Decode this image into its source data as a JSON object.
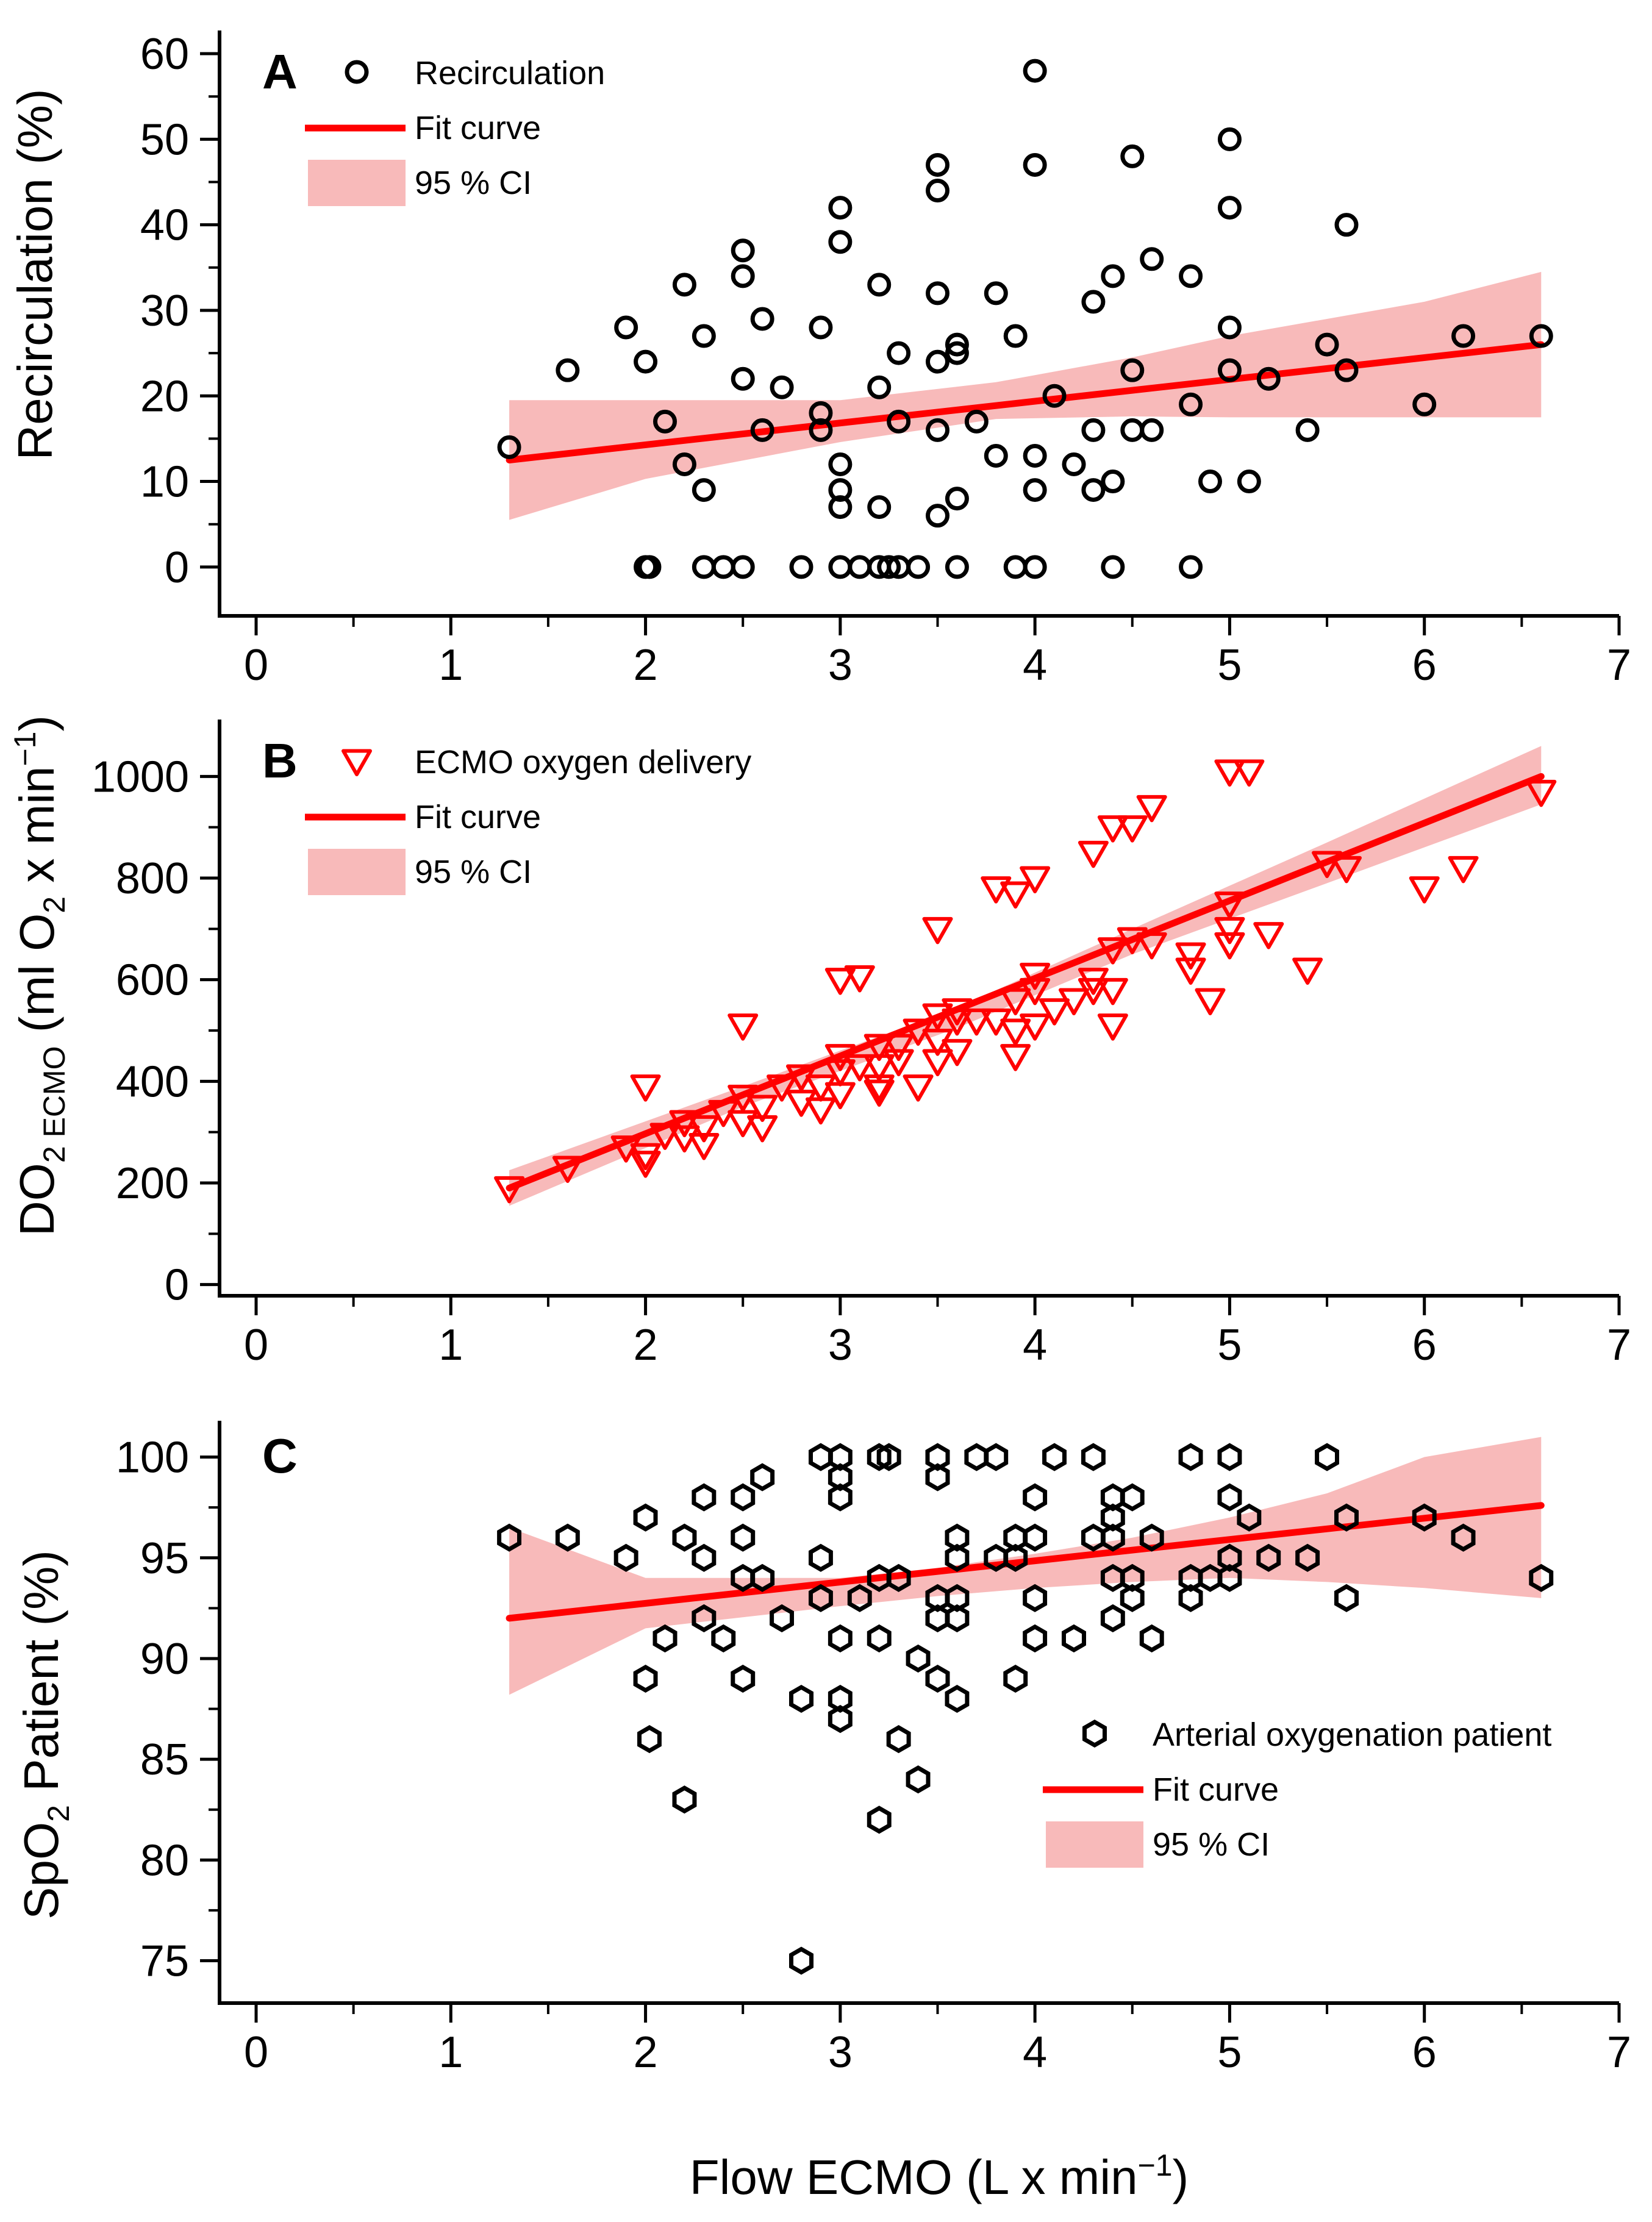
{
  "chart_data": [
    {
      "type": "scatter",
      "panel": "A",
      "ylabel": "Recirculation (%)",
      "ylabel_parts": {
        "main": "Recirculation (%)"
      },
      "xlim": [
        0,
        7
      ],
      "ylim": [
        -5,
        62
      ],
      "xticks": [
        0,
        1,
        2,
        3,
        4,
        5,
        6,
        7
      ],
      "yticks": [
        0,
        10,
        20,
        30,
        40,
        50,
        60
      ],
      "legend": {
        "position": "top-left",
        "points": "Recirculation",
        "fit": "Fit curve",
        "ci": "95 % CI"
      },
      "marker": "circle",
      "colors": {
        "points": "#000000",
        "fit": "#ff0000",
        "ci": "#f5a3a3"
      },
      "fit": {
        "x": [
          1.3,
          6.6
        ],
        "y": [
          12.5,
          26.0
        ]
      },
      "ci_band": {
        "x": [
          1.3,
          2,
          3,
          3.8,
          4.5,
          5,
          6,
          6.6
        ],
        "lower": [
          5.5,
          10.3,
          14.6,
          17.3,
          17.6,
          17.5,
          17.5,
          17.5
        ],
        "upper": [
          19.5,
          19.5,
          19.5,
          21.6,
          24.5,
          27.0,
          31.0,
          34.5
        ]
      },
      "points": [
        [
          1.3,
          14
        ],
        [
          1.6,
          23
        ],
        [
          1.9,
          28
        ],
        [
          2,
          24
        ],
        [
          2,
          0
        ],
        [
          2.02,
          0
        ],
        [
          2.1,
          17
        ],
        [
          2.2,
          33
        ],
        [
          2.2,
          12
        ],
        [
          2.3,
          27
        ],
        [
          2.3,
          9
        ],
        [
          2.3,
          0
        ],
        [
          2.4,
          0
        ],
        [
          2.5,
          37
        ],
        [
          2.5,
          34
        ],
        [
          2.5,
          22
        ],
        [
          2.5,
          0
        ],
        [
          2.6,
          29
        ],
        [
          2.6,
          16
        ],
        [
          2.7,
          21
        ],
        [
          2.8,
          0
        ],
        [
          2.9,
          28
        ],
        [
          2.9,
          18
        ],
        [
          2.9,
          16
        ],
        [
          3,
          42
        ],
        [
          3,
          38
        ],
        [
          3,
          12
        ],
        [
          3,
          9
        ],
        [
          3,
          7
        ],
        [
          3,
          0
        ],
        [
          3.1,
          0
        ],
        [
          3.2,
          33
        ],
        [
          3.2,
          21
        ],
        [
          3.2,
          7
        ],
        [
          3.2,
          0
        ],
        [
          3.25,
          0
        ],
        [
          3.3,
          25
        ],
        [
          3.3,
          17
        ],
        [
          3.3,
          0
        ],
        [
          3.4,
          0
        ],
        [
          3.5,
          47
        ],
        [
          3.5,
          44
        ],
        [
          3.5,
          32
        ],
        [
          3.5,
          24
        ],
        [
          3.5,
          16
        ],
        [
          3.5,
          6
        ],
        [
          3.6,
          26
        ],
        [
          3.6,
          25
        ],
        [
          3.6,
          8
        ],
        [
          3.6,
          0
        ],
        [
          3.7,
          17
        ],
        [
          3.8,
          32
        ],
        [
          3.8,
          13
        ],
        [
          3.9,
          27
        ],
        [
          3.9,
          0
        ],
        [
          4,
          58
        ],
        [
          4,
          47
        ],
        [
          4,
          13
        ],
        [
          4,
          9
        ],
        [
          4,
          0
        ],
        [
          4.1,
          20
        ],
        [
          4.2,
          12
        ],
        [
          4.3,
          31
        ],
        [
          4.3,
          16
        ],
        [
          4.3,
          9
        ],
        [
          4.4,
          34
        ],
        [
          4.4,
          10
        ],
        [
          4.4,
          0
        ],
        [
          4.5,
          48
        ],
        [
          4.5,
          23
        ],
        [
          4.5,
          16
        ],
        [
          4.6,
          36
        ],
        [
          4.6,
          16
        ],
        [
          4.8,
          34
        ],
        [
          4.8,
          19
        ],
        [
          4.8,
          0
        ],
        [
          4.9,
          10
        ],
        [
          5,
          50
        ],
        [
          5,
          42
        ],
        [
          5,
          28
        ],
        [
          5,
          23
        ],
        [
          5.1,
          10
        ],
        [
          5.2,
          22
        ],
        [
          5.4,
          16
        ],
        [
          5.5,
          26
        ],
        [
          5.6,
          40
        ],
        [
          5.6,
          23
        ],
        [
          6,
          19
        ],
        [
          6.2,
          27
        ],
        [
          6.6,
          27
        ]
      ]
    },
    {
      "type": "scatter",
      "panel": "B",
      "ylabel_parts": {
        "main": "DO",
        "sub1": "2 ECMO",
        "rest": " (ml O",
        "sub2": "2",
        "tail": " x min",
        "sup": "−1",
        "close": ")"
      },
      "xlim": [
        0,
        7
      ],
      "ylim": [
        -10,
        1100
      ],
      "xticks": [
        0,
        1,
        2,
        3,
        4,
        5,
        6,
        7
      ],
      "yticks": [
        0,
        200,
        400,
        600,
        800,
        1000
      ],
      "legend": {
        "position": "top-left",
        "points": "ECMO oxygen delivery",
        "fit": "Fit curve",
        "ci": "95 % CI"
      },
      "marker": "triangle-down",
      "colors": {
        "points": "#ff0000",
        "fit": "#ff0000",
        "ci": "#f5a3a3"
      },
      "fit": {
        "x": [
          1.3,
          6.6
        ],
        "y": [
          190,
          1000
        ]
      },
      "ci_band": {
        "x": [
          1.3,
          2.5,
          3.6,
          4.5,
          5.5,
          6.6
        ],
        "lower": [
          155,
          350,
          505,
          650,
          790,
          945
        ],
        "upper": [
          225,
          390,
          545,
          700,
          870,
          1060
        ]
      },
      "points": [
        [
          1.3,
          190
        ],
        [
          1.6,
          230
        ],
        [
          1.9,
          270
        ],
        [
          2,
          390
        ],
        [
          2,
          255
        ],
        [
          2,
          240
        ],
        [
          2.1,
          295
        ],
        [
          2.2,
          320
        ],
        [
          2.2,
          290
        ],
        [
          2.3,
          310
        ],
        [
          2.3,
          275
        ],
        [
          2.4,
          340
        ],
        [
          2.5,
          510
        ],
        [
          2.5,
          370
        ],
        [
          2.5,
          320
        ],
        [
          2.6,
          350
        ],
        [
          2.6,
          310
        ],
        [
          2.7,
          390
        ],
        [
          2.8,
          410
        ],
        [
          2.8,
          360
        ],
        [
          2.9,
          390
        ],
        [
          2.9,
          345
        ],
        [
          3,
          600
        ],
        [
          3,
          450
        ],
        [
          3,
          420
        ],
        [
          3,
          375
        ],
        [
          3.1,
          605
        ],
        [
          3.1,
          430
        ],
        [
          3.2,
          470
        ],
        [
          3.2,
          430
        ],
        [
          3.2,
          390
        ],
        [
          3.2,
          380
        ],
        [
          3.3,
          470
        ],
        [
          3.3,
          440
        ],
        [
          3.4,
          500
        ],
        [
          3.4,
          390
        ],
        [
          3.5,
          700
        ],
        [
          3.5,
          530
        ],
        [
          3.5,
          480
        ],
        [
          3.5,
          440
        ],
        [
          3.6,
          540
        ],
        [
          3.6,
          520
        ],
        [
          3.6,
          460
        ],
        [
          3.7,
          520
        ],
        [
          3.8,
          780
        ],
        [
          3.8,
          520
        ],
        [
          3.9,
          770
        ],
        [
          3.9,
          560
        ],
        [
          3.9,
          500
        ],
        [
          3.9,
          450
        ],
        [
          4,
          800
        ],
        [
          4,
          610
        ],
        [
          4,
          580
        ],
        [
          4,
          510
        ],
        [
          4.1,
          540
        ],
        [
          4.2,
          560
        ],
        [
          4.3,
          850
        ],
        [
          4.3,
          600
        ],
        [
          4.3,
          580
        ],
        [
          4.4,
          900
        ],
        [
          4.4,
          660
        ],
        [
          4.4,
          580
        ],
        [
          4.4,
          510
        ],
        [
          4.5,
          900
        ],
        [
          4.5,
          680
        ],
        [
          4.6,
          940
        ],
        [
          4.6,
          670
        ],
        [
          4.8,
          650
        ],
        [
          4.8,
          620
        ],
        [
          4.9,
          560
        ],
        [
          5,
          1010
        ],
        [
          5,
          750
        ],
        [
          5,
          700
        ],
        [
          5,
          670
        ],
        [
          5.1,
          1010
        ],
        [
          5.2,
          690
        ],
        [
          5.4,
          620
        ],
        [
          5.5,
          830
        ],
        [
          5.6,
          820
        ],
        [
          6,
          780
        ],
        [
          6.2,
          820
        ],
        [
          6.6,
          970
        ]
      ]
    },
    {
      "type": "scatter",
      "panel": "C",
      "ylabel_parts": {
        "main": "SpO",
        "sub1": "2",
        "rest": " Patient (%)"
      },
      "xlabel_parts": {
        "main": "Flow ECMO (L x min",
        "sup": "−1",
        "close": ")"
      },
      "xlim": [
        0,
        7
      ],
      "ylim": [
        73.2,
        101.5
      ],
      "xticks": [
        0,
        1,
        2,
        3,
        4,
        5,
        6,
        7
      ],
      "yticks": [
        75,
        80,
        85,
        90,
        95,
        100
      ],
      "legend": {
        "position": "bottom-right",
        "points": "Arterial oxygenation patient",
        "fit": "Fit curve",
        "ci": "95 % CI"
      },
      "marker": "hexagon",
      "colors": {
        "points": "#000000",
        "fit": "#ff0000",
        "ci": "#f5a3a3"
      },
      "fit": {
        "x": [
          1.3,
          6.6
        ],
        "y": [
          92.0,
          97.6
        ]
      },
      "ci_band": {
        "x": [
          1.3,
          2,
          3,
          3.5,
          4,
          4.5,
          5,
          5.5,
          6,
          6.6
        ],
        "lower": [
          88.2,
          91.5,
          92.6,
          93.1,
          93.5,
          93.8,
          94.0,
          93.8,
          93.5,
          93.0
        ],
        "upper": [
          96.5,
          94.0,
          94.0,
          94.5,
          95.2,
          96.0,
          97.0,
          98.2,
          100.0,
          101.0
        ]
      },
      "points": [
        [
          1.3,
          96
        ],
        [
          1.6,
          96
        ],
        [
          1.9,
          95
        ],
        [
          2,
          97
        ],
        [
          2,
          89
        ],
        [
          2.02,
          86
        ],
        [
          2.1,
          91
        ],
        [
          2.2,
          96
        ],
        [
          2.2,
          83
        ],
        [
          2.3,
          98
        ],
        [
          2.3,
          95
        ],
        [
          2.3,
          92
        ],
        [
          2.4,
          91
        ],
        [
          2.5,
          98
        ],
        [
          2.5,
          96
        ],
        [
          2.5,
          94
        ],
        [
          2.5,
          89
        ],
        [
          2.6,
          99
        ],
        [
          2.6,
          94
        ],
        [
          2.7,
          92
        ],
        [
          2.8,
          88
        ],
        [
          2.8,
          75
        ],
        [
          2.9,
          100
        ],
        [
          2.9,
          95
        ],
        [
          2.9,
          93
        ],
        [
          3,
          100
        ],
        [
          3,
          99
        ],
        [
          3,
          98
        ],
        [
          3,
          91
        ],
        [
          3,
          88
        ],
        [
          3,
          87
        ],
        [
          3.1,
          93
        ],
        [
          3.2,
          100
        ],
        [
          3.2,
          94
        ],
        [
          3.2,
          91
        ],
        [
          3.2,
          82
        ],
        [
          3.25,
          100
        ],
        [
          3.3,
          94
        ],
        [
          3.3,
          86
        ],
        [
          3.4,
          90
        ],
        [
          3.4,
          84
        ],
        [
          3.5,
          100
        ],
        [
          3.5,
          99
        ],
        [
          3.5,
          93
        ],
        [
          3.5,
          92
        ],
        [
          3.5,
          89
        ],
        [
          3.6,
          96
        ],
        [
          3.6,
          95
        ],
        [
          3.6,
          93
        ],
        [
          3.6,
          92
        ],
        [
          3.6,
          88
        ],
        [
          3.7,
          100
        ],
        [
          3.8,
          100
        ],
        [
          3.8,
          95
        ],
        [
          3.9,
          96
        ],
        [
          3.9,
          95
        ],
        [
          3.9,
          89
        ],
        [
          4,
          98
        ],
        [
          4,
          96
        ],
        [
          4,
          93
        ],
        [
          4,
          91
        ],
        [
          4.1,
          100
        ],
        [
          4.2,
          91
        ],
        [
          4.3,
          100
        ],
        [
          4.3,
          96
        ],
        [
          4.4,
          98
        ],
        [
          4.4,
          97
        ],
        [
          4.4,
          96
        ],
        [
          4.4,
          94
        ],
        [
          4.4,
          92
        ],
        [
          4.5,
          98
        ],
        [
          4.5,
          94
        ],
        [
          4.5,
          93
        ],
        [
          4.6,
          96
        ],
        [
          4.6,
          91
        ],
        [
          4.8,
          100
        ],
        [
          4.8,
          94
        ],
        [
          4.8,
          93
        ],
        [
          4.9,
          94
        ],
        [
          5,
          100
        ],
        [
          5,
          98
        ],
        [
          5,
          95
        ],
        [
          5,
          94
        ],
        [
          5.1,
          97
        ],
        [
          5.2,
          95
        ],
        [
          5.4,
          95
        ],
        [
          5.5,
          100
        ],
        [
          5.6,
          97
        ],
        [
          5.6,
          93
        ],
        [
          6,
          97
        ],
        [
          6.2,
          96
        ],
        [
          6.6,
          94
        ]
      ]
    }
  ]
}
